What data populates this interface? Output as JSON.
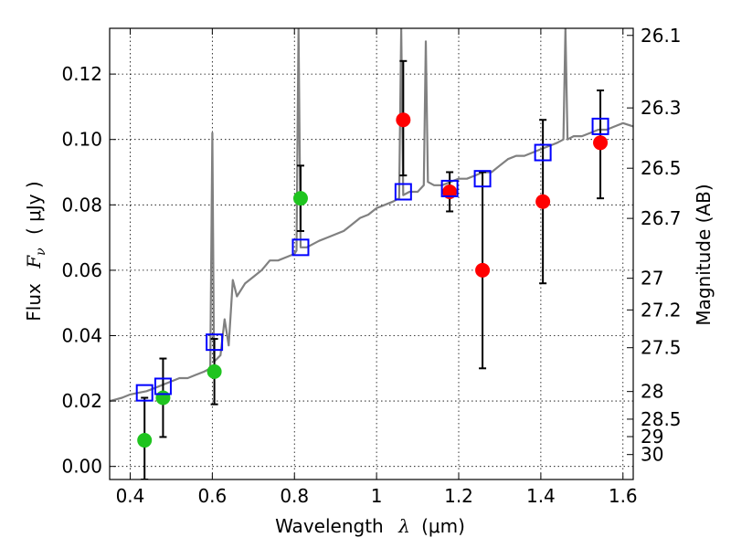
{
  "chart_data": {
    "type": "scatter",
    "title": "",
    "xlabel": {
      "prefix": "Wavelength",
      "symbol": "λ",
      "unit": "(μm)"
    },
    "ylabel": {
      "prefix": "Flux",
      "symbol": "F",
      "subscript": "ν",
      "unit": "( μJy )"
    },
    "y2label": "Magnitude (AB)",
    "xlim": [
      0.35,
      1.625
    ],
    "ylim": [
      -0.004,
      0.134
    ],
    "grid": true,
    "x_ticks": [
      0.4,
      0.6,
      0.8,
      1.0,
      1.2,
      1.4,
      1.6
    ],
    "x_tick_labels": [
      "0.4",
      "0.6",
      "0.8",
      "1",
      "1.2",
      "1.4",
      "1.6"
    ],
    "y_ticks": [
      0.0,
      0.02,
      0.04,
      0.06,
      0.08,
      0.1,
      0.12
    ],
    "y_tick_labels": [
      "0.00",
      "0.02",
      "0.04",
      "0.06",
      "0.08",
      "0.10",
      "0.12"
    ],
    "mag_ticks": [
      {
        "label": "26.1",
        "mag": 26.1
      },
      {
        "label": "26.3",
        "mag": 26.3
      },
      {
        "label": "26.5",
        "mag": 26.5
      },
      {
        "label": "26.7",
        "mag": 26.7
      },
      {
        "label": "27",
        "mag": 27.0
      },
      {
        "label": "27.2",
        "mag": 27.2
      },
      {
        "label": "27.5",
        "mag": 27.5
      },
      {
        "label": "28",
        "mag": 28.0
      },
      {
        "label": "28.5",
        "mag": 28.5
      },
      {
        "label": "29",
        "mag": 29.0
      },
      {
        "label": "30",
        "mag": 30.0
      }
    ],
    "colors": {
      "model": "#808080",
      "green": "#1fc41f",
      "red": "#ff0000",
      "squares": "#0000ff",
      "errorbar": "#000000"
    },
    "series": [
      {
        "name": "model spectrum",
        "kind": "line",
        "points": [
          [
            0.35,
            0.02
          ],
          [
            0.38,
            0.021
          ],
          [
            0.4,
            0.022
          ],
          [
            0.42,
            0.0225
          ],
          [
            0.44,
            0.023
          ],
          [
            0.46,
            0.024
          ],
          [
            0.48,
            0.025
          ],
          [
            0.5,
            0.026
          ],
          [
            0.52,
            0.027
          ],
          [
            0.54,
            0.027
          ],
          [
            0.56,
            0.028
          ],
          [
            0.58,
            0.029
          ],
          [
            0.595,
            0.03
          ],
          [
            0.6,
            0.102
          ],
          [
            0.604,
            0.032
          ],
          [
            0.62,
            0.034
          ],
          [
            0.63,
            0.045
          ],
          [
            0.64,
            0.037
          ],
          [
            0.65,
            0.057
          ],
          [
            0.66,
            0.052
          ],
          [
            0.68,
            0.056
          ],
          [
            0.7,
            0.058
          ],
          [
            0.72,
            0.06
          ],
          [
            0.74,
            0.063
          ],
          [
            0.76,
            0.063
          ],
          [
            0.78,
            0.064
          ],
          [
            0.8,
            0.065
          ],
          [
            0.805,
            0.066
          ],
          [
            0.81,
            0.134
          ],
          [
            0.815,
            0.067
          ],
          [
            0.83,
            0.067
          ],
          [
            0.86,
            0.069
          ],
          [
            0.88,
            0.07
          ],
          [
            0.9,
            0.071
          ],
          [
            0.92,
            0.072
          ],
          [
            0.94,
            0.074
          ],
          [
            0.96,
            0.076
          ],
          [
            0.98,
            0.077
          ],
          [
            1.0,
            0.079
          ],
          [
            1.02,
            0.08
          ],
          [
            1.04,
            0.081
          ],
          [
            1.055,
            0.082
          ],
          [
            1.06,
            0.134
          ],
          [
            1.065,
            0.083
          ],
          [
            1.08,
            0.084
          ],
          [
            1.1,
            0.084
          ],
          [
            1.115,
            0.086
          ],
          [
            1.12,
            0.13
          ],
          [
            1.125,
            0.087
          ],
          [
            1.14,
            0.086
          ],
          [
            1.16,
            0.086
          ],
          [
            1.18,
            0.087
          ],
          [
            1.2,
            0.088
          ],
          [
            1.22,
            0.088
          ],
          [
            1.24,
            0.089
          ],
          [
            1.26,
            0.09
          ],
          [
            1.28,
            0.09
          ],
          [
            1.3,
            0.092
          ],
          [
            1.32,
            0.094
          ],
          [
            1.34,
            0.095
          ],
          [
            1.36,
            0.095
          ],
          [
            1.38,
            0.096
          ],
          [
            1.4,
            0.097
          ],
          [
            1.42,
            0.098
          ],
          [
            1.44,
            0.099
          ],
          [
            1.455,
            0.1
          ],
          [
            1.46,
            0.134
          ],
          [
            1.465,
            0.1
          ],
          [
            1.48,
            0.101
          ],
          [
            1.5,
            0.101
          ],
          [
            1.52,
            0.102
          ],
          [
            1.54,
            0.103
          ],
          [
            1.56,
            0.103
          ],
          [
            1.58,
            0.104
          ],
          [
            1.6,
            0.105
          ],
          [
            1.625,
            0.104
          ]
        ]
      },
      {
        "name": "green measurements",
        "kind": "circle",
        "color": "green",
        "points": [
          {
            "x": 0.435,
            "y": 0.008,
            "lo": -0.004,
            "hi": 0.021
          },
          {
            "x": 0.48,
            "y": 0.021,
            "lo": 0.009,
            "hi": 0.033
          },
          {
            "x": 0.605,
            "y": 0.029,
            "lo": 0.019,
            "hi": 0.039
          },
          {
            "x": 0.815,
            "y": 0.082,
            "lo": 0.072,
            "hi": 0.092
          }
        ]
      },
      {
        "name": "red measurements",
        "kind": "circle",
        "color": "red",
        "points": [
          {
            "x": 1.065,
            "y": 0.106,
            "lo": 0.089,
            "hi": 0.124
          },
          {
            "x": 1.178,
            "y": 0.084,
            "lo": 0.078,
            "hi": 0.09
          },
          {
            "x": 1.258,
            "y": 0.06,
            "lo": 0.03,
            "hi": 0.09
          },
          {
            "x": 1.405,
            "y": 0.081,
            "lo": 0.056,
            "hi": 0.106
          },
          {
            "x": 1.545,
            "y": 0.099,
            "lo": 0.082,
            "hi": 0.115
          }
        ]
      },
      {
        "name": "model band fluxes",
        "kind": "square",
        "color": "squares",
        "points": [
          {
            "x": 0.435,
            "y": 0.0225
          },
          {
            "x": 0.48,
            "y": 0.0245
          },
          {
            "x": 0.605,
            "y": 0.038
          },
          {
            "x": 0.815,
            "y": 0.067
          },
          {
            "x": 1.065,
            "y": 0.084
          },
          {
            "x": 1.178,
            "y": 0.085
          },
          {
            "x": 1.258,
            "y": 0.088
          },
          {
            "x": 1.405,
            "y": 0.096
          },
          {
            "x": 1.545,
            "y": 0.104
          }
        ]
      }
    ]
  }
}
